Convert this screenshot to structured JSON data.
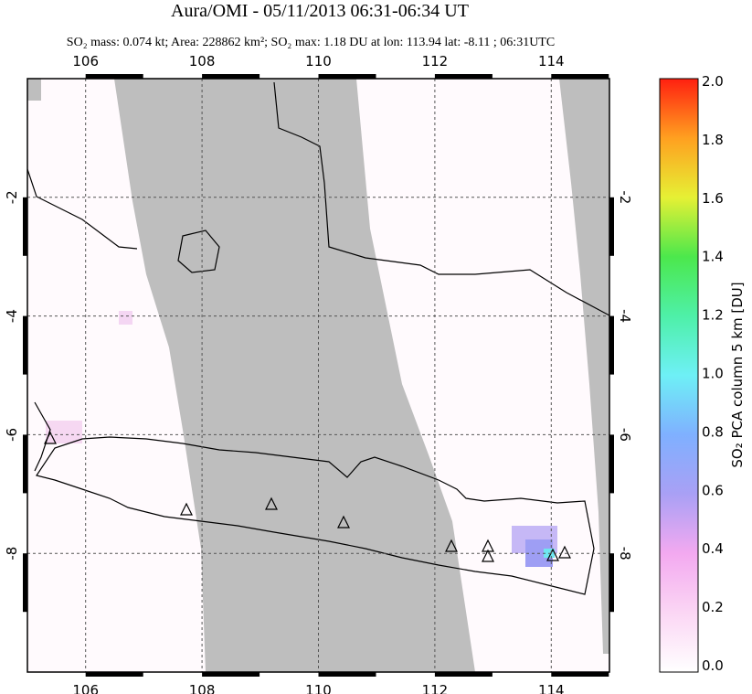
{
  "chart_data": {
    "type": "map",
    "title": "Aura/OMI - 05/11/2013 06:31-06:34 UT",
    "subtitle": "SO₂ mass: 0.074 kt; Area: 228862 km²; SO₂ max: 1.18 DU at lon: 113.94 lat: -8.11 ; 06:31UTC",
    "xlim": [
      105,
      115
    ],
    "ylim": [
      -10,
      0
    ],
    "xticks": [
      106,
      108,
      110,
      112,
      114
    ],
    "yticks": [
      -2,
      -4,
      -6,
      -8
    ],
    "grid": true,
    "colorbar": {
      "label": "SO₂ PCA column 5 km [DU]",
      "lim": [
        0,
        2
      ],
      "ticks": [
        {
          "value": 0,
          "label": "0.0"
        },
        0.2,
        0.4,
        0.6,
        0.8,
        {
          "value": 1,
          "label": "1.0"
        },
        1.2,
        1.4,
        1.6,
        1.8,
        {
          "value": 2,
          "label": "2.0"
        }
      ]
    }
  }
}
